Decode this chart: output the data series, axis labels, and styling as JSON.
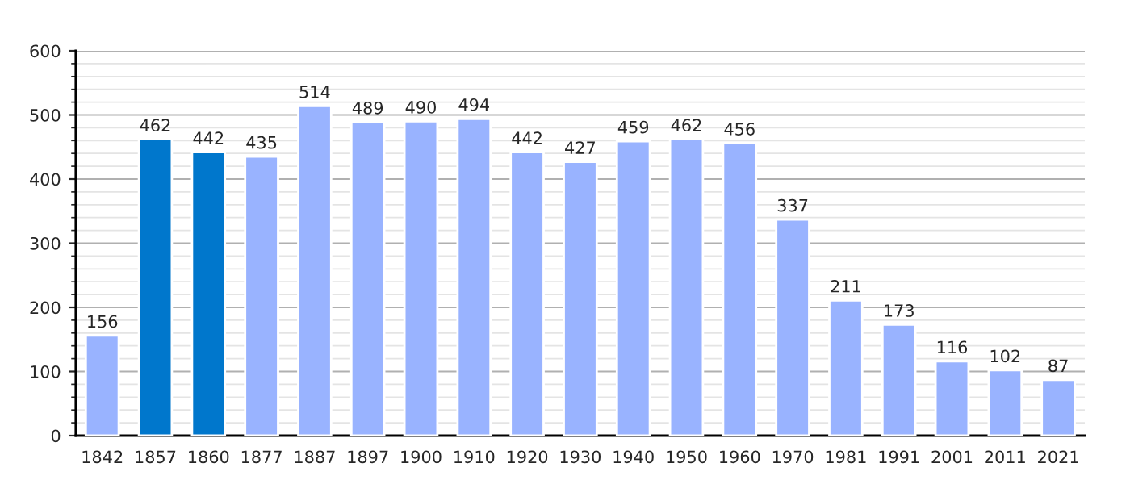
{
  "chart_data": {
    "type": "bar",
    "categories": [
      "1842",
      "1857",
      "1860",
      "1877",
      "1887",
      "1897",
      "1900",
      "1910",
      "1920",
      "1930",
      "1940",
      "1950",
      "1960",
      "1970",
      "1981",
      "1991",
      "2001",
      "2011",
      "2021"
    ],
    "values": [
      156,
      462,
      442,
      435,
      514,
      489,
      490,
      494,
      442,
      427,
      459,
      462,
      456,
      337,
      211,
      173,
      116,
      102,
      87
    ],
    "colors": [
      "#99b3ff",
      "#0077cc",
      "#0077cc",
      "#99b3ff",
      "#99b3ff",
      "#99b3ff",
      "#99b3ff",
      "#99b3ff",
      "#99b3ff",
      "#99b3ff",
      "#99b3ff",
      "#99b3ff",
      "#99b3ff",
      "#99b3ff",
      "#99b3ff",
      "#99b3ff",
      "#99b3ff",
      "#99b3ff",
      "#99b3ff"
    ],
    "ylim": [
      0,
      600
    ],
    "yticks": [
      0,
      100,
      200,
      300,
      400,
      500,
      600
    ],
    "grid": "y",
    "data_labels": true
  }
}
